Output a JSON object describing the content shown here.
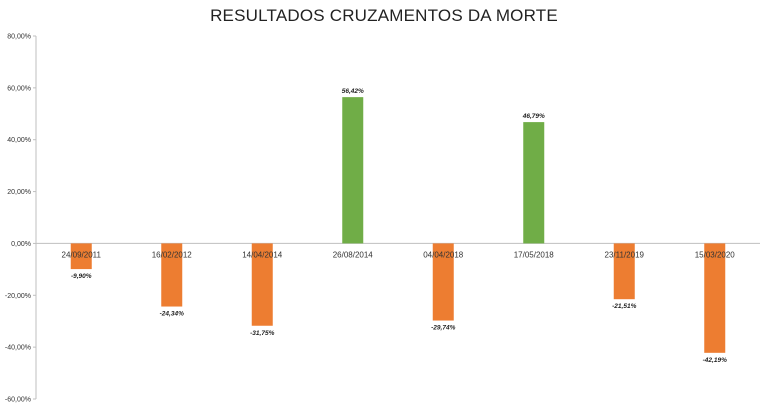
{
  "chart_data": {
    "type": "bar",
    "title": "RESULTADOS CRUZAMENTOS DA MORTE",
    "xlabel": "",
    "ylabel": "",
    "categories": [
      "24/09/2011",
      "16/02/2012",
      "14/04/2014",
      "26/08/2014",
      "04/04/2018",
      "17/05/2018",
      "23/11/2019",
      "15/03/2020"
    ],
    "values": [
      -9.9,
      -24.34,
      -31.75,
      56.42,
      -29.74,
      46.79,
      -21.51,
      -42.19
    ],
    "data_labels": [
      "-9,90%",
      "-24,34%",
      "-31,75%",
      "56,42%",
      "-29,74%",
      "46,79%",
      "-21,51%",
      "-42,19%"
    ],
    "ylim": [
      -60,
      80
    ],
    "yticks": [
      80,
      60,
      40,
      20,
      0,
      -20,
      -40,
      -60
    ],
    "ytick_labels": [
      "80,00%",
      "60,00%",
      "40,00%",
      "20,00%",
      "0,00%",
      "-20,00%",
      "-40,00%",
      "-60,00%"
    ],
    "grid": false,
    "legend": "none",
    "colors": {
      "positive": "#70AD47",
      "negative": "#ED7D31",
      "axis": "#bfbfbf"
    }
  }
}
